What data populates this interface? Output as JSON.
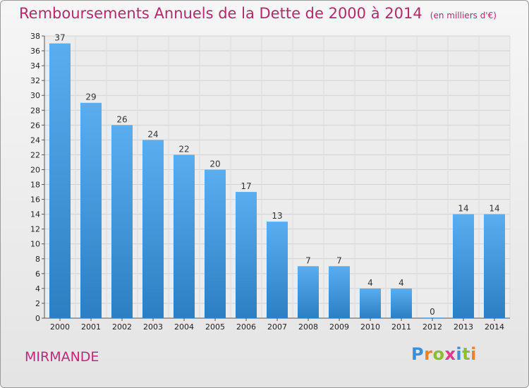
{
  "header": {
    "title": "Remboursements Annuels de la Dette de 2000 à 2014",
    "unit": "(en milliers d'€)"
  },
  "footer": {
    "commune": "MIRMANDE",
    "logo": "Proxiti"
  },
  "colors": {
    "title": "#b5286a",
    "bar_top": "#5aaef0",
    "bar_bottom": "#2b7fc2",
    "logo_letters": [
      "#3b8fd8",
      "#e8832a",
      "#8cbf2a",
      "#e23a8a",
      "#3b8fd8",
      "#8cbf2a",
      "#e8832a"
    ]
  },
  "chart_data": {
    "type": "bar",
    "title": "Remboursements Annuels de la Dette de 2000 à 2014",
    "categories": [
      "2000",
      "2001",
      "2002",
      "2003",
      "2004",
      "2005",
      "2006",
      "2007",
      "2008",
      "2009",
      "2010",
      "2011",
      "2012",
      "2013",
      "2014"
    ],
    "values": [
      37,
      29,
      26,
      24,
      22,
      20,
      17,
      13,
      7,
      7,
      4,
      4,
      0,
      14,
      14
    ],
    "ylim": [
      0,
      38
    ],
    "yticks": [
      0,
      2,
      4,
      6,
      8,
      10,
      12,
      14,
      16,
      18,
      20,
      22,
      24,
      26,
      28,
      30,
      32,
      34,
      36,
      38
    ],
    "grid": true,
    "xlabel": "",
    "ylabel": ""
  }
}
